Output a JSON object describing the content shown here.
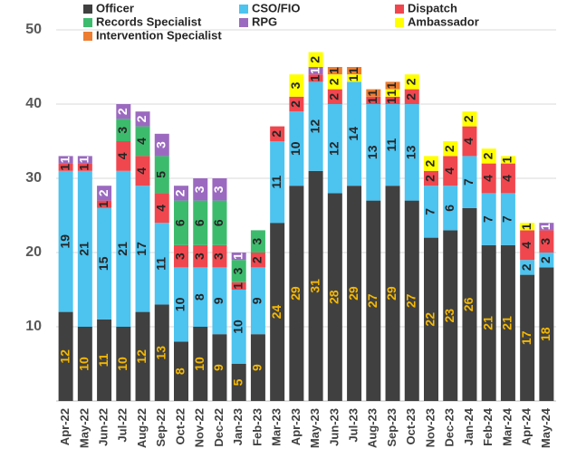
{
  "chart_data": {
    "type": "stacked_bar",
    "categories": [
      "Apr-22",
      "May-22",
      "Jun-22",
      "Jul-22",
      "Aug-22",
      "Sep-22",
      "Oct-22",
      "Nov-22",
      "Dec-22",
      "Jan-23",
      "Feb-23",
      "Mar-23",
      "Apr-23",
      "May-23",
      "Jun-23",
      "Jul-23",
      "Aug-23",
      "Sep-23",
      "Oct-23",
      "Nov-23",
      "Dec-23",
      "Jan-24",
      "Feb-24",
      "Mar-24",
      "Apr-24",
      "May-24"
    ],
    "series": [
      {
        "name": "Officer",
        "color": "#404040",
        "label_color": "#f5b800",
        "values": [
          12,
          10,
          11,
          10,
          12,
          13,
          8,
          10,
          9,
          5,
          9,
          24,
          29,
          31,
          28,
          29,
          27,
          29,
          27,
          22,
          23,
          26,
          21,
          21,
          17,
          18
        ]
      },
      {
        "name": "CSO/FIO",
        "color": "#4dc3ef",
        "label_color": "#262626",
        "values": [
          19,
          21,
          15,
          21,
          17,
          11,
          10,
          8,
          9,
          10,
          9,
          11,
          10,
          12,
          12,
          14,
          13,
          11,
          13,
          7,
          6,
          7,
          7,
          7,
          2,
          2
        ]
      },
      {
        "name": "Dispatch",
        "color": "#f0474f",
        "label_color": "#262626",
        "values": [
          1,
          1,
          1,
          4,
          4,
          4,
          3,
          3,
          3,
          1,
          2,
          2,
          2,
          1,
          2,
          0,
          1,
          1,
          2,
          2,
          4,
          4,
          4,
          4,
          4,
          3
        ]
      },
      {
        "name": "Records Specialist",
        "color": "#3dbb6d",
        "label_color": "#262626",
        "values": [
          0,
          0,
          0,
          3,
          4,
          5,
          6,
          6,
          6,
          3,
          3,
          0,
          0,
          0,
          0,
          0,
          0,
          0,
          0,
          0,
          0,
          0,
          0,
          0,
          0,
          0
        ]
      },
      {
        "name": "RPG",
        "color": "#9b6ac0",
        "label_color": "#ffffff",
        "values": [
          1,
          1,
          2,
          2,
          2,
          3,
          2,
          3,
          3,
          1,
          0,
          0,
          0,
          1,
          0,
          0,
          0,
          0,
          0,
          0,
          0,
          0,
          0,
          0,
          0,
          1
        ]
      },
      {
        "name": "Ambassador",
        "color": "#ffff00",
        "label_color": "#262626",
        "values": [
          0,
          0,
          0,
          0,
          0,
          0,
          0,
          0,
          0,
          0,
          0,
          0,
          3,
          2,
          2,
          1,
          0,
          1,
          2,
          2,
          2,
          2,
          2,
          1,
          1,
          0
        ]
      },
      {
        "name": "Intervention Specialist",
        "color": "#ed7d31",
        "label_color": "#262626",
        "values": [
          0,
          0,
          0,
          0,
          0,
          0,
          0,
          0,
          0,
          0,
          0,
          0,
          0,
          0,
          1,
          1,
          1,
          1,
          0,
          0,
          0,
          0,
          0,
          0,
          0,
          0
        ]
      }
    ],
    "ylim": [
      0,
      50
    ],
    "yticks": [
      10,
      20,
      30,
      40,
      50
    ],
    "grid": true
  }
}
